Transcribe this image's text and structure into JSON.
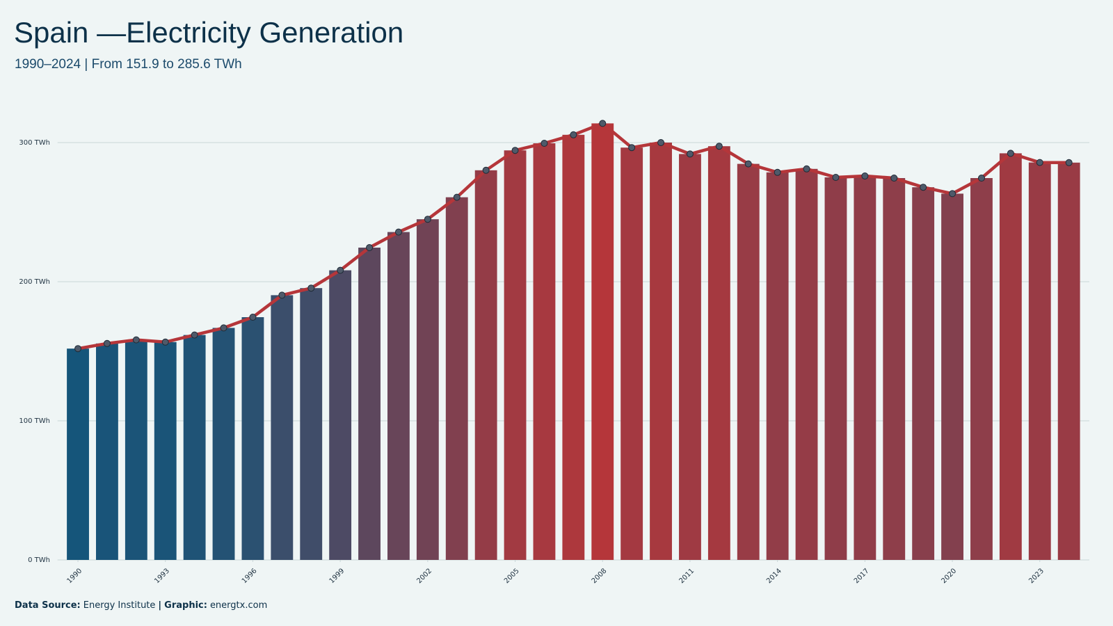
{
  "chart_data": {
    "type": "bar-line",
    "title": "Spain —Electricity Generation",
    "subtitle": "1990–2024 | From 151.9 to 285.6 TWh",
    "x": [
      1990,
      1991,
      1992,
      1993,
      1994,
      1995,
      1996,
      1997,
      1998,
      1999,
      2000,
      2001,
      2002,
      2003,
      2004,
      2005,
      2006,
      2007,
      2008,
      2009,
      2010,
      2011,
      2012,
      2013,
      2014,
      2015,
      2016,
      2017,
      2018,
      2019,
      2020,
      2021,
      2022,
      2023,
      2024
    ],
    "values": [
      151.9,
      155.6,
      158.2,
      156.6,
      161.7,
      166.8,
      174.5,
      190.3,
      195.4,
      208.2,
      224.5,
      235.7,
      244.9,
      260.7,
      280.1,
      294.4,
      299.5,
      305.6,
      313.8,
      296.4,
      300.0,
      291.8,
      297.4,
      284.7,
      278.6,
      281.1,
      275.0,
      276.0,
      274.5,
      267.9,
      263.3,
      274.5,
      292.3,
      285.7,
      285.6
    ],
    "xlim": [
      1989.3,
      2024.7
    ],
    "xticks": [
      1990,
      1993,
      1996,
      1999,
      2002,
      2005,
      2008,
      2011,
      2014,
      2017,
      2020,
      2023
    ],
    "ylim": [
      0,
      320
    ],
    "yticks": [
      {
        "value": 0,
        "label": "0 TWh"
      },
      {
        "value": 100,
        "label": "100 TWh"
      },
      {
        "value": 200,
        "label": "200 TWh"
      },
      {
        "value": 300,
        "label": "300 TWh"
      }
    ],
    "grid": true,
    "color_scale": [
      "#15557a",
      "#b5363a"
    ],
    "line_color": "#b5363a",
    "marker_color": "#4f5a6a",
    "footer": [
      {
        "text": "Data Source:",
        "bold": true
      },
      {
        "text": "Energy Institute",
        "bold": false
      },
      {
        "text": "|",
        "bold": true
      },
      {
        "text": "Graphic:",
        "bold": true
      },
      {
        "text": "energtx.com",
        "bold": false
      }
    ]
  }
}
